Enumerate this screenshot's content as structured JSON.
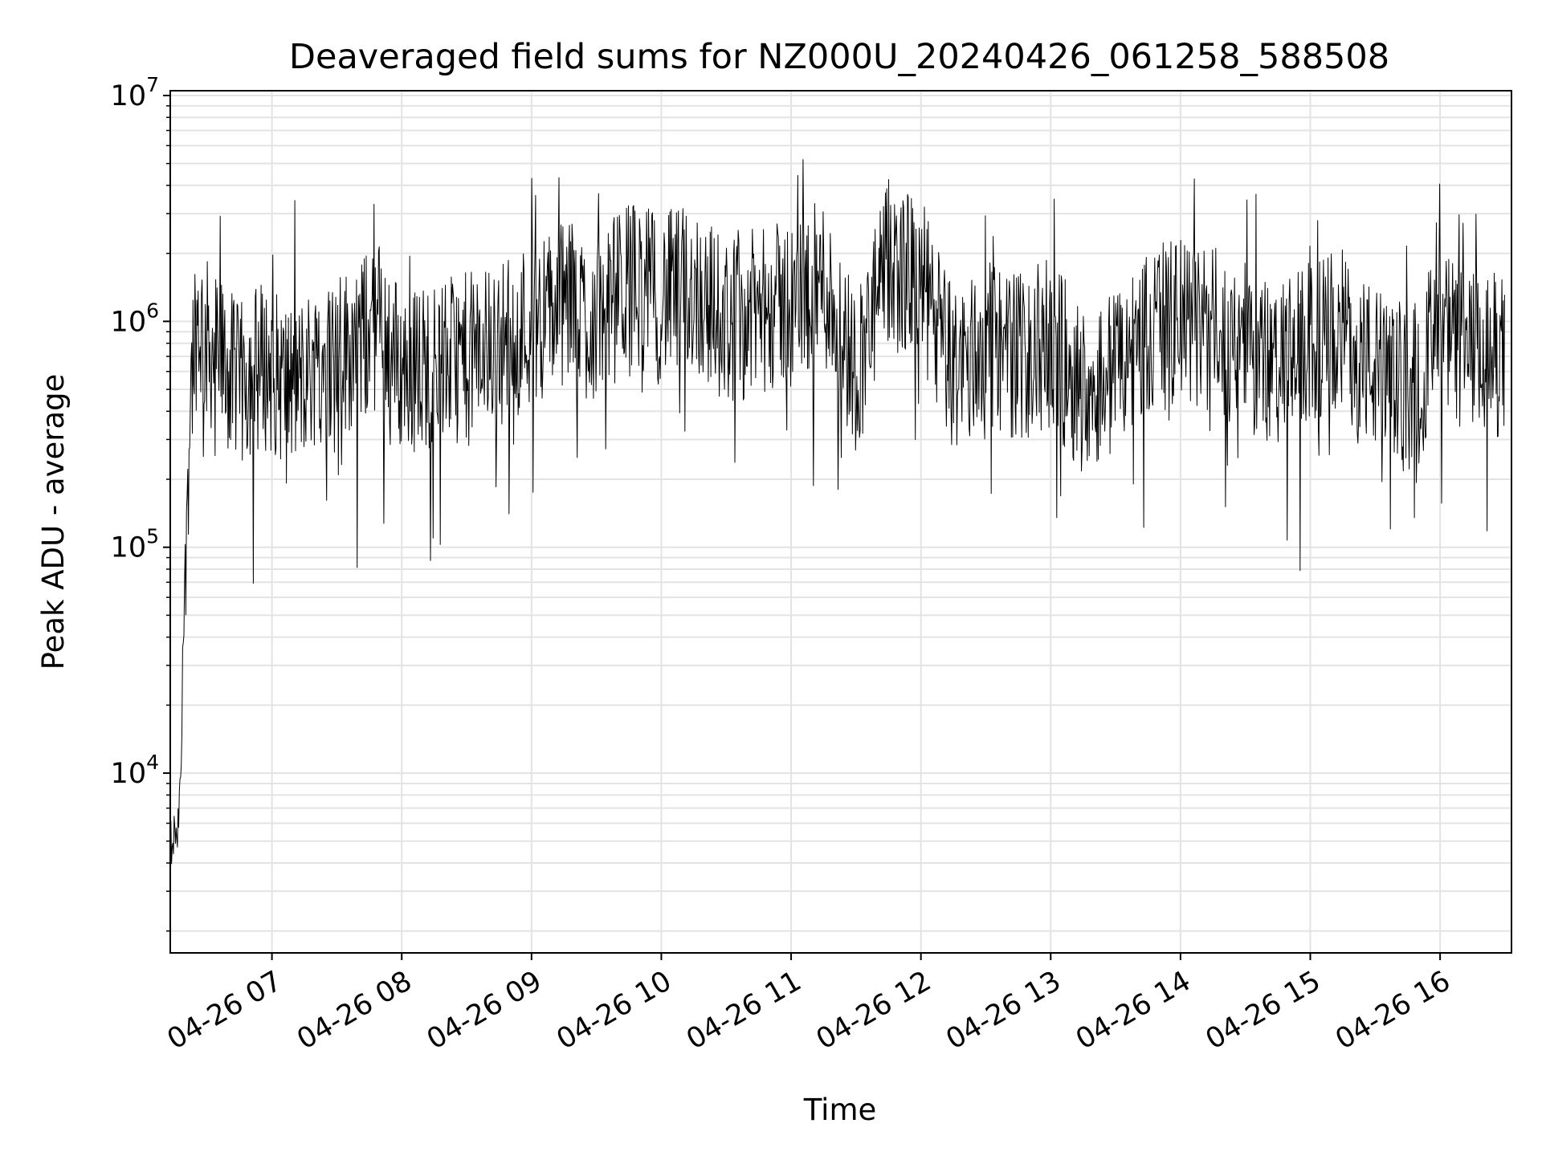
{
  "chart_data": {
    "type": "line",
    "title": "Deaveraged field sums for NZ000U_20240426_061258_588508",
    "xlabel": "Time",
    "ylabel": "Peak ADU - average",
    "yscale": "log",
    "grid": true,
    "x_tick_labels": [
      "04-26 07",
      "04-26 08",
      "04-26 09",
      "04-26 10",
      "04-26 11",
      "04-26 12",
      "04-26 13",
      "04-26 14",
      "04-26 15",
      "04-26 16"
    ],
    "y_tick_labels": [
      {
        "base": "10",
        "exp": "4",
        "value": 10000
      },
      {
        "base": "10",
        "exp": "5",
        "value": 100000
      },
      {
        "base": "10",
        "exp": "6",
        "value": 1000000
      },
      {
        "base": "10",
        "exp": "7",
        "value": 10000000
      }
    ],
    "xlim": [
      "2024-04-26 06:13",
      "2024-04-26 16:33"
    ],
    "ylim": [
      1600,
      10500000
    ],
    "line_color": "#000000",
    "series": [
      {
        "x": [
          "2024-04-26 06:13",
          "2024-04-26 06:14",
          "2024-04-26 06:15",
          "2024-04-26 06:16",
          "2024-04-26 06:18",
          "2024-04-26 06:20",
          "2024-04-26 06:22",
          "2024-04-26 06:24",
          "2024-04-26 06:26",
          "2024-04-26 06:30",
          "2024-04-26 06:35",
          "2024-04-26 06:40",
          "2024-04-26 06:45",
          "2024-04-26 06:50",
          "2024-04-26 06:55",
          "2024-04-26 07:00",
          "2024-04-26 07:10",
          "2024-04-26 07:20",
          "2024-04-26 07:30",
          "2024-04-26 07:40",
          "2024-04-26 07:50",
          "2024-04-26 08:00",
          "2024-04-26 08:15",
          "2024-04-26 08:30",
          "2024-04-26 08:45",
          "2024-04-26 09:00",
          "2024-04-26 09:15",
          "2024-04-26 09:30",
          "2024-04-26 09:45",
          "2024-04-26 10:00",
          "2024-04-26 10:15",
          "2024-04-26 10:30",
          "2024-04-26 10:45",
          "2024-04-26 11:00",
          "2024-04-26 11:15",
          "2024-04-26 11:30",
          "2024-04-26 11:45",
          "2024-04-26 12:00",
          "2024-04-26 12:15",
          "2024-04-26 12:30",
          "2024-04-26 12:45",
          "2024-04-26 13:00",
          "2024-04-26 13:15",
          "2024-04-26 13:30",
          "2024-04-26 13:45",
          "2024-04-26 14:00",
          "2024-04-26 14:15",
          "2024-04-26 14:30",
          "2024-04-26 14:45",
          "2024-04-26 15:00",
          "2024-04-26 15:15",
          "2024-04-26 15:30",
          "2024-04-26 15:45",
          "2024-04-26 16:00",
          "2024-04-26 16:15",
          "2024-04-26 16:30"
        ],
        "values": [
          5500,
          4000,
          6000,
          4500,
          10000,
          100000,
          400000,
          900000,
          1000000,
          800000,
          700000,
          600000,
          500000,
          600000,
          650000,
          600000,
          500000,
          650000,
          700000,
          800000,
          1000000,
          600000,
          650000,
          700000,
          800000,
          1000000,
          1200000,
          1000000,
          1500000,
          1300000,
          1400000,
          1000000,
          1100000,
          1200000,
          1500000,
          600000,
          1800000,
          1500000,
          600000,
          800000,
          700000,
          800000,
          500000,
          600000,
          900000,
          1000000,
          900000,
          800000,
          600000,
          800000,
          900000,
          600000,
          500000,
          900000,
          700000,
          700000
        ]
      }
    ]
  }
}
